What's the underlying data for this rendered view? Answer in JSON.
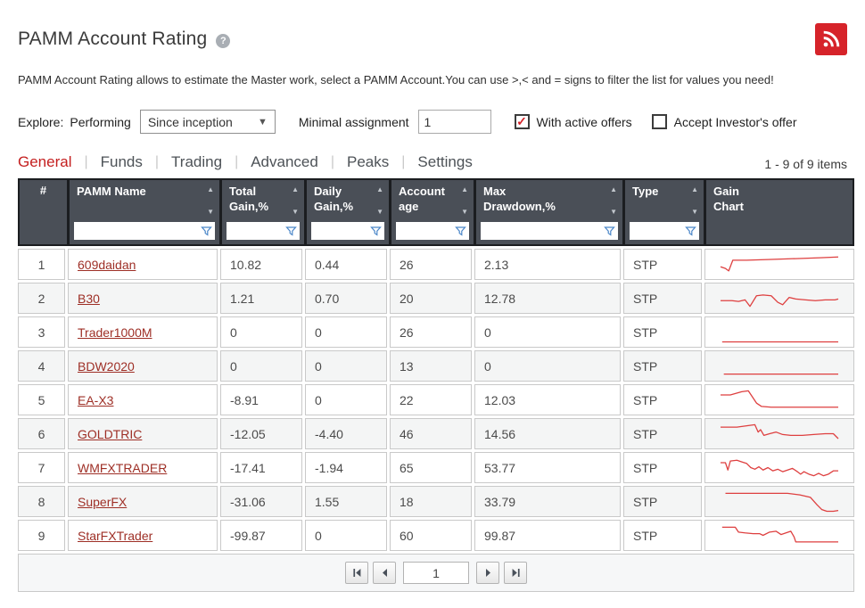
{
  "header": {
    "title": "PAMM Account Rating",
    "help_icon": "question-mark",
    "rss_icon": "rss-feed",
    "rss_color": "#d6232a",
    "description": "PAMM Account Rating allows to estimate the Master work, select a PAMM Account.You can use >,< and = signs to filter the list for values you need!"
  },
  "filters": {
    "explore_label": "Explore:",
    "explore_mode": "Performing",
    "period_selected": "Since inception",
    "minimal_assignment_label": "Minimal assignment",
    "minimal_assignment_value": "1",
    "with_active_offers": {
      "label": "With active offers",
      "checked": true,
      "check_color": "#d6232a"
    },
    "accept_investors_offer": {
      "label": "Accept Investor's offer",
      "checked": false
    }
  },
  "tabs": [
    {
      "label": "General",
      "active": true
    },
    {
      "label": "Funds",
      "active": false
    },
    {
      "label": "Trading",
      "active": false
    },
    {
      "label": "Advanced",
      "active": false
    },
    {
      "label": "Peaks",
      "active": false
    },
    {
      "label": "Settings",
      "active": false
    }
  ],
  "items_count": "1 - 9 of 9 items",
  "table": {
    "columns": [
      {
        "label": "#",
        "sortable": false,
        "filterable": false
      },
      {
        "label": "PAMM Name",
        "sortable": true,
        "filterable": true
      },
      {
        "label": "Total\nGain,%",
        "sortable": true,
        "filterable": true
      },
      {
        "label": "Daily\nGain,%",
        "sortable": true,
        "filterable": true
      },
      {
        "label": "Account\nage",
        "sortable": true,
        "filterable": true
      },
      {
        "label": "Max\nDrawdown,%",
        "sortable": true,
        "filterable": true
      },
      {
        "label": "Type",
        "sortable": true,
        "filterable": true
      },
      {
        "label": "Gain\nChart",
        "sortable": false,
        "filterable": false
      }
    ],
    "spark_color": "#de3f3f",
    "rows": [
      {
        "num": "1",
        "name": "609daidan",
        "total_gain": "10.82",
        "daily_gain": "0.44",
        "age": "26",
        "max_drawdown": "2.13",
        "type": "STP",
        "spark": [
          [
            8,
            21
          ],
          [
            14,
            23
          ],
          [
            18,
            26
          ],
          [
            23,
            13
          ],
          [
            40,
            13
          ],
          [
            70,
            12
          ],
          [
            100,
            11
          ],
          [
            130,
            10
          ],
          [
            152,
            9
          ]
        ]
      },
      {
        "num": "2",
        "name": "B30",
        "total_gain": "1.21",
        "daily_gain": "0.70",
        "age": "20",
        "max_drawdown": "12.78",
        "type": "STP",
        "spark": [
          [
            8,
            21
          ],
          [
            22,
            21
          ],
          [
            30,
            22
          ],
          [
            38,
            20
          ],
          [
            44,
            28
          ],
          [
            52,
            15
          ],
          [
            60,
            14
          ],
          [
            70,
            15
          ],
          [
            78,
            23
          ],
          [
            84,
            26
          ],
          [
            92,
            17
          ],
          [
            100,
            19
          ],
          [
            112,
            20
          ],
          [
            124,
            21
          ],
          [
            136,
            20
          ],
          [
            148,
            20
          ],
          [
            152,
            19
          ]
        ]
      },
      {
        "num": "3",
        "name": "Trader1000M",
        "total_gain": "0",
        "daily_gain": "0",
        "age": "26",
        "max_drawdown": "0",
        "type": "STP",
        "spark": [
          [
            10,
            30
          ],
          [
            152,
            30
          ]
        ]
      },
      {
        "num": "4",
        "name": "BDW2020",
        "total_gain": "0",
        "daily_gain": "0",
        "age": "13",
        "max_drawdown": "0",
        "type": "STP",
        "spark": [
          [
            12,
            28
          ],
          [
            152,
            28
          ]
        ]
      },
      {
        "num": "5",
        "name": "EA-X3",
        "total_gain": "-8.91",
        "daily_gain": "0",
        "age": "22",
        "max_drawdown": "12.03",
        "type": "STP",
        "spark": [
          [
            8,
            12
          ],
          [
            20,
            12
          ],
          [
            34,
            8
          ],
          [
            42,
            7
          ],
          [
            48,
            16
          ],
          [
            52,
            22
          ],
          [
            58,
            26
          ],
          [
            70,
            27
          ],
          [
            152,
            27
          ]
        ]
      },
      {
        "num": "6",
        "name": "GOLDTRIC",
        "total_gain": "-12.05",
        "daily_gain": "-4.40",
        "age": "46",
        "max_drawdown": "14.56",
        "type": "STP",
        "spark": [
          [
            8,
            10
          ],
          [
            28,
            10
          ],
          [
            42,
            8
          ],
          [
            50,
            7
          ],
          [
            54,
            16
          ],
          [
            57,
            13
          ],
          [
            61,
            20
          ],
          [
            68,
            18
          ],
          [
            76,
            16
          ],
          [
            84,
            19
          ],
          [
            94,
            20
          ],
          [
            108,
            20
          ],
          [
            122,
            19
          ],
          [
            136,
            18
          ],
          [
            146,
            18
          ],
          [
            152,
            24
          ]
        ]
      },
      {
        "num": "7",
        "name": "WMFXTRADER",
        "total_gain": "-17.41",
        "daily_gain": "-1.94",
        "age": "65",
        "max_drawdown": "53.77",
        "type": "STP",
        "spark": [
          [
            8,
            12
          ],
          [
            14,
            12
          ],
          [
            17,
            21
          ],
          [
            20,
            10
          ],
          [
            28,
            9
          ],
          [
            34,
            11
          ],
          [
            40,
            13
          ],
          [
            45,
            18
          ],
          [
            50,
            20
          ],
          [
            55,
            17
          ],
          [
            60,
            21
          ],
          [
            66,
            18
          ],
          [
            72,
            22
          ],
          [
            78,
            20
          ],
          [
            84,
            23
          ],
          [
            90,
            21
          ],
          [
            96,
            19
          ],
          [
            102,
            23
          ],
          [
            106,
            26
          ],
          [
            110,
            23
          ],
          [
            116,
            26
          ],
          [
            122,
            28
          ],
          [
            128,
            25
          ],
          [
            134,
            28
          ],
          [
            140,
            26
          ],
          [
            146,
            22
          ],
          [
            152,
            22
          ]
        ]
      },
      {
        "num": "8",
        "name": "SuperFX",
        "total_gain": "-31.06",
        "daily_gain": "1.55",
        "age": "18",
        "max_drawdown": "33.79",
        "type": "STP",
        "spark": [
          [
            14,
            8
          ],
          [
            90,
            8
          ],
          [
            105,
            10
          ],
          [
            118,
            13
          ],
          [
            126,
            22
          ],
          [
            132,
            28
          ],
          [
            138,
            30
          ],
          [
            146,
            30
          ],
          [
            152,
            29
          ]
        ]
      },
      {
        "num": "9",
        "name": "StarFXTrader",
        "total_gain": "-99.87",
        "daily_gain": "0",
        "age": "60",
        "max_drawdown": "99.87",
        "type": "STP",
        "spark": [
          [
            10,
            8
          ],
          [
            26,
            8
          ],
          [
            30,
            14
          ],
          [
            38,
            15
          ],
          [
            48,
            16
          ],
          [
            56,
            16
          ],
          [
            60,
            18
          ],
          [
            68,
            14
          ],
          [
            76,
            13
          ],
          [
            82,
            17
          ],
          [
            88,
            15
          ],
          [
            94,
            13
          ],
          [
            98,
            20
          ],
          [
            100,
            26
          ],
          [
            112,
            26
          ],
          [
            152,
            26
          ]
        ]
      }
    ]
  },
  "pagination": {
    "current_page": "1",
    "first_icon": "first-page",
    "prev_icon": "previous-page",
    "next_icon": "next-page",
    "last_icon": "last-page"
  }
}
